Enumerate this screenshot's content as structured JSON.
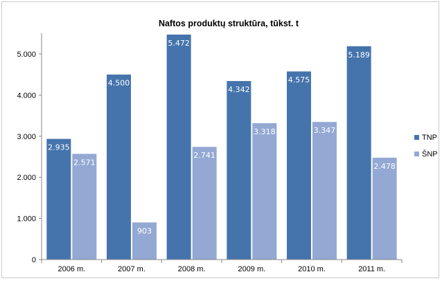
{
  "chart_data": {
    "type": "bar",
    "title": "Naftos produktų struktūra, tūkst. t",
    "categories": [
      "2006 m.",
      "2007 m.",
      "2008 m.",
      "2009 m.",
      "2010 m.",
      "2011 m."
    ],
    "series": [
      {
        "name": "TNP",
        "color": "#4574ad",
        "values": [
          2935,
          4500,
          5472,
          4342,
          4575,
          5189
        ],
        "labels": [
          "2.935",
          "4.500",
          "5.472",
          "4.342",
          "4.575",
          "5.189"
        ]
      },
      {
        "name": "ŠNP",
        "color": "#93a9d3",
        "values": [
          2571,
          903,
          2741,
          3318,
          3347,
          2478
        ],
        "labels": [
          "2.571",
          "903",
          "2.741",
          "3.318",
          "3.347",
          "2.478"
        ]
      }
    ],
    "ylim": [
      0,
      5000
    ],
    "yticks": [
      0,
      1000,
      2000,
      3000,
      4000,
      5000
    ],
    "ytick_labels": [
      "0",
      "1.000",
      "2.000",
      "3.000",
      "4.000",
      "5.000"
    ],
    "xlabel": "",
    "ylabel": "",
    "grid": false,
    "legend_position": "right"
  }
}
